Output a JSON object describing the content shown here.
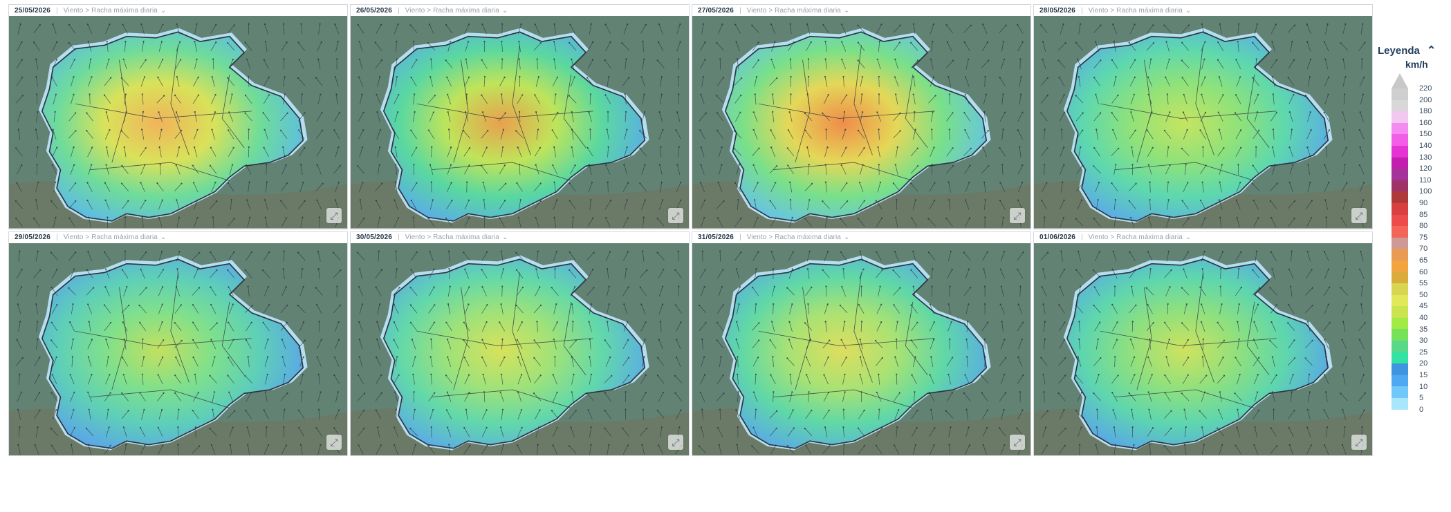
{
  "variable_label": "Viento > Racha máxima diaria",
  "panels": [
    {
      "date": "25/05/2026"
    },
    {
      "date": "26/05/2026"
    },
    {
      "date": "27/05/2026"
    },
    {
      "date": "28/05/2026"
    },
    {
      "date": "29/05/2026"
    },
    {
      "date": "30/05/2026"
    },
    {
      "date": "31/05/2026"
    },
    {
      "date": "01/06/2026"
    }
  ],
  "legend": {
    "title": "Leyenda",
    "unit": "km/h",
    "levels": [
      {
        "label": "220",
        "color": "#cfcfcf"
      },
      {
        "label": "200",
        "color": "#d8d8d8"
      },
      {
        "label": "180",
        "color": "#f2c7f0"
      },
      {
        "label": "160",
        "color": "#f58af0"
      },
      {
        "label": "150",
        "color": "#f25ee6"
      },
      {
        "label": "140",
        "color": "#e633d4"
      },
      {
        "label": "130",
        "color": "#c21fae"
      },
      {
        "label": "120",
        "color": "#a63399"
      },
      {
        "label": "110",
        "color": "#9e3369"
      },
      {
        "label": "100",
        "color": "#b03a3a"
      },
      {
        "label": "90",
        "color": "#d94040"
      },
      {
        "label": "85",
        "color": "#ee4c4c"
      },
      {
        "label": "80",
        "color": "#f2665a"
      },
      {
        "label": "75",
        "color": "#cf9a95"
      },
      {
        "label": "70",
        "color": "#e89b55"
      },
      {
        "label": "65",
        "color": "#f2a53f"
      },
      {
        "label": "60",
        "color": "#dbac3c"
      },
      {
        "label": "55",
        "color": "#d7d652"
      },
      {
        "label": "50",
        "color": "#e1e85a"
      },
      {
        "label": "45",
        "color": "#c9e44e"
      },
      {
        "label": "40",
        "color": "#a4ea46"
      },
      {
        "label": "35",
        "color": "#76e25a"
      },
      {
        "label": "30",
        "color": "#58d98a"
      },
      {
        "label": "25",
        "color": "#32e3a4"
      },
      {
        "label": "20",
        "color": "#3f95e0"
      },
      {
        "label": "15",
        "color": "#4ea9f2"
      },
      {
        "label": "10",
        "color": "#6fc8f7"
      },
      {
        "label": "5",
        "color": "#a8e6fb"
      },
      {
        "label": "0",
        "color": ""
      }
    ]
  },
  "icons": {
    "expand": "expand-icon",
    "chevron": "chevron-down-icon",
    "legend_toggle": "chevron-up-icon"
  }
}
